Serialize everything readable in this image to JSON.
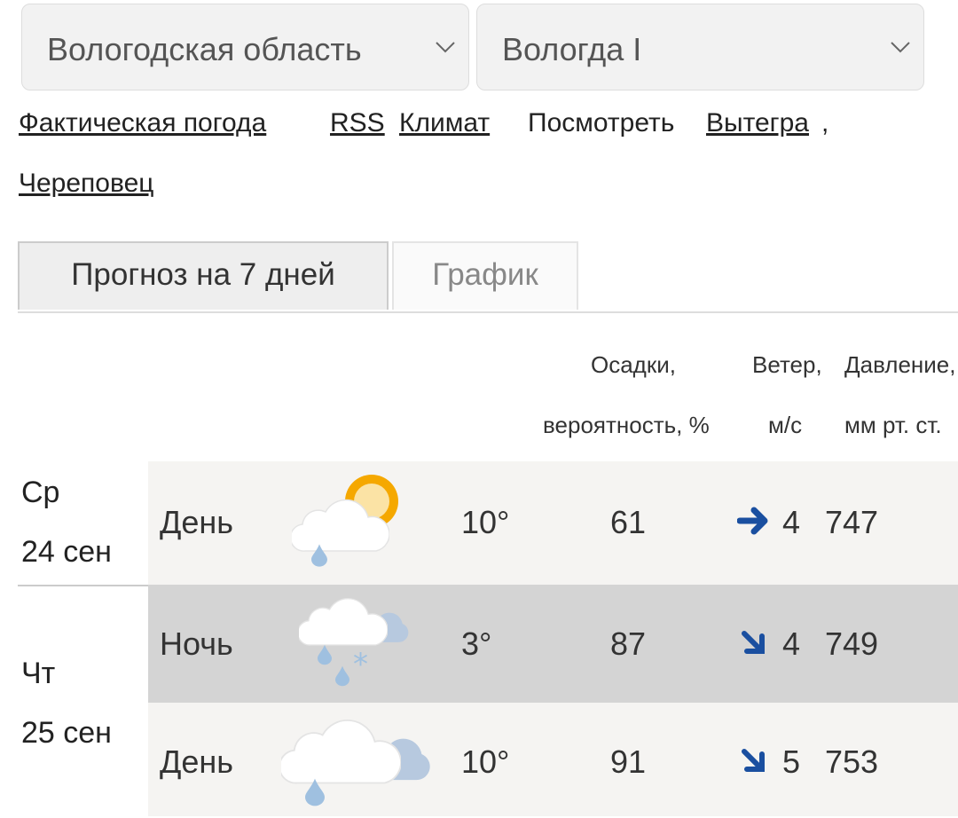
{
  "selects": {
    "region": "Вологодская область",
    "station": "Вологда I"
  },
  "links": {
    "actual": "Фактическая погода",
    "rss": "RSS",
    "climate": "Климат",
    "see_label": "Посмотреть",
    "city1": "Вытегра",
    "comma": ",",
    "city2": "Череповец"
  },
  "tabs": [
    {
      "label": "Прогноз на 7 дней",
      "active": true
    },
    {
      "label": "График",
      "active": false
    }
  ],
  "table": {
    "headers": {
      "precip_1": "Осадки,",
      "precip_2": "вероятность, %",
      "wind_1": "Ветер,",
      "wind_2": "м/с",
      "pressure_1": "Давление,",
      "pressure_2": "мм рт. ст."
    },
    "days": [
      {
        "weekday": "Ср",
        "date": "24 сен"
      },
      {
        "weekday": "Чт",
        "date": "25 сен"
      }
    ],
    "rows": [
      {
        "period": "День",
        "icon": "partly-cloudy-rain-icon",
        "temp": "10°",
        "precip": "61",
        "wind_dir": "east-arrow-icon",
        "wind": "4",
        "pressure": "747"
      },
      {
        "period": "Ночь",
        "icon": "cloudy-rain-snow-icon",
        "temp": "3°",
        "precip": "87",
        "wind_dir": "southeast-arrow-icon",
        "wind": "4",
        "pressure": "749"
      },
      {
        "period": "День",
        "icon": "cloudy-rain-icon",
        "temp": "10°",
        "precip": "91",
        "wind_dir": "southeast-arrow-icon",
        "wind": "5",
        "pressure": "753"
      }
    ]
  },
  "colors": {
    "arrow": "#1a4fa0",
    "row_light": "#f5f4f2",
    "row_dark": "#d4d4d4"
  }
}
